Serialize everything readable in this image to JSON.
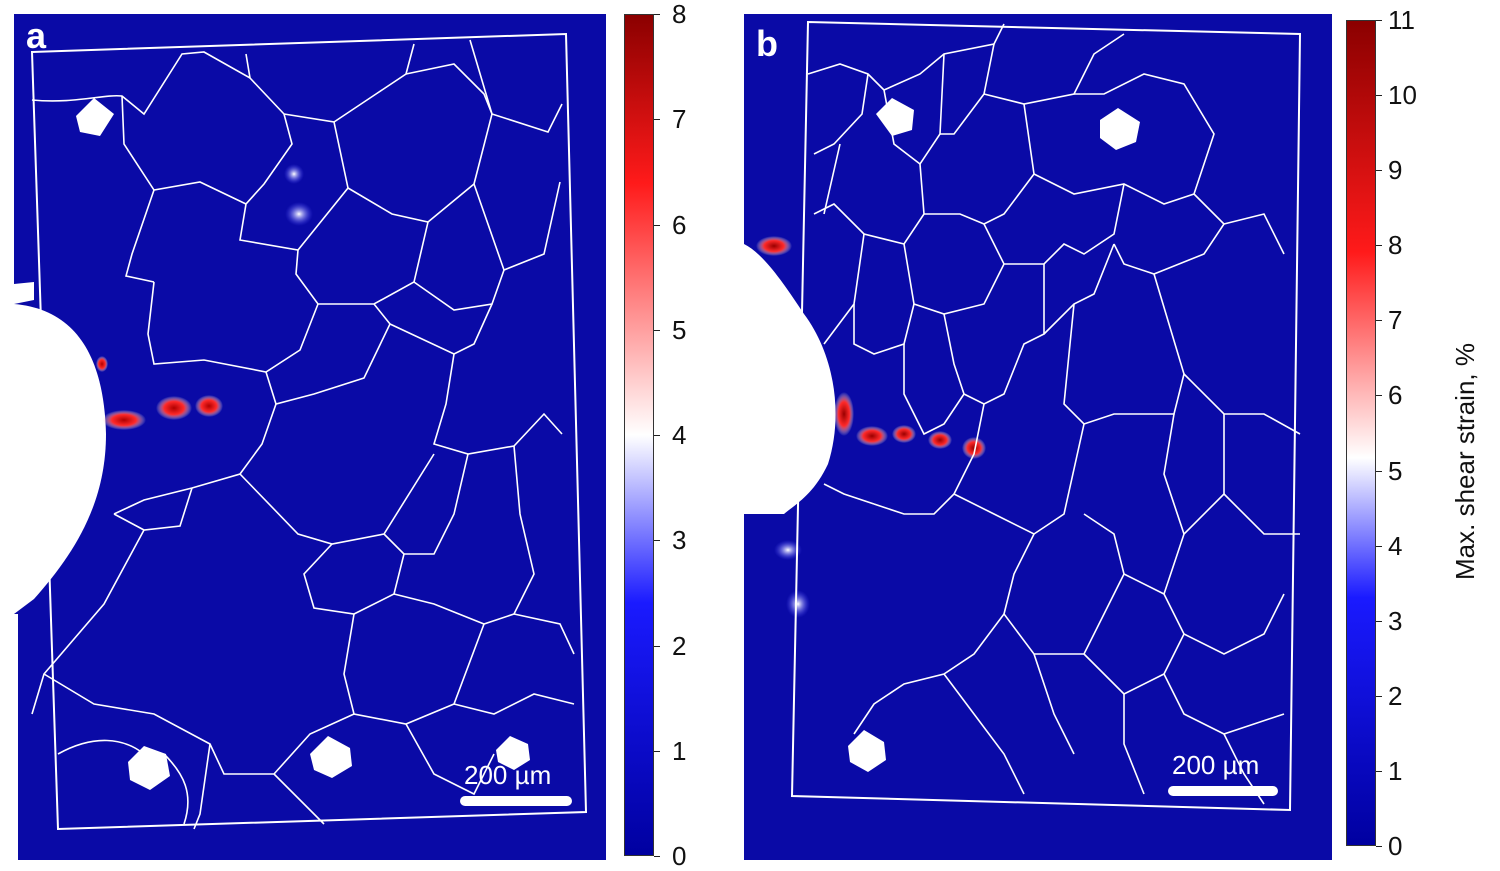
{
  "panels": [
    {
      "letter": "a",
      "scale_bar": "200 µm",
      "colorbar": {
        "ticks": [
          "0",
          "1",
          "2",
          "3",
          "4",
          "5",
          "6",
          "7",
          "8"
        ],
        "min": 0,
        "max": 8
      }
    },
    {
      "letter": "b",
      "scale_bar": "200 µm",
      "colorbar": {
        "ticks": [
          "0",
          "1",
          "2",
          "3",
          "4",
          "5",
          "6",
          "7",
          "8",
          "9",
          "10",
          "11"
        ],
        "min": 0,
        "max": 11,
        "title": "Max. shear strain, %"
      }
    }
  ],
  "colors": {
    "low": "#0a0aa6",
    "mid": "#ffffff",
    "high": "#8b0000",
    "grain_boundary": "#ffffff"
  }
}
